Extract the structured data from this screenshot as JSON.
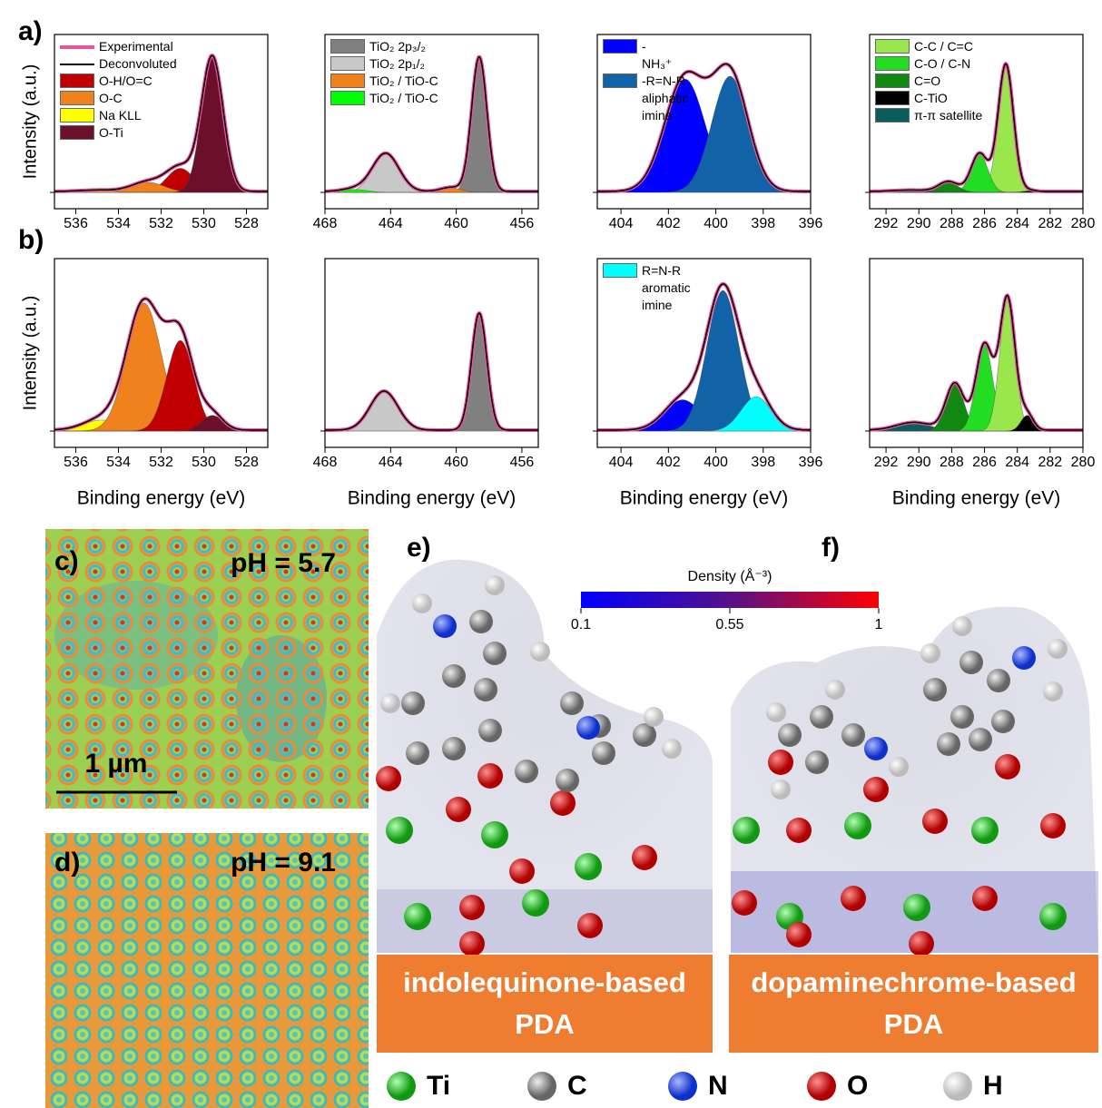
{
  "panel_labels": {
    "a": "a)",
    "b": "b)",
    "c": "c)",
    "d": "d)",
    "e": "e)",
    "f": "f)"
  },
  "xps": {
    "ylabel": "Intensity (a.u.)",
    "xlabel": "Binding energy (eV)",
    "experimental": {
      "name": "Experimental",
      "color": "#e8559f"
    },
    "fit": {
      "name": "Deconvoluted",
      "color": "#000000"
    },
    "charts": [
      {
        "xlim": [
          537,
          527
        ],
        "xticks": [
          536,
          534,
          532,
          530,
          528
        ],
        "legend": true,
        "series": [
          {
            "name": "O-H/O=C",
            "color": "#c00000",
            "center": 531.1,
            "height": 0.17,
            "width": 1.5
          },
          {
            "name": "O-C",
            "color": "#f0821e",
            "center": 532.6,
            "height": 0.07,
            "width": 1.8
          },
          {
            "name": "Na KLL",
            "color": "#ffff00",
            "center": 535,
            "height": 0.01,
            "width": 2
          },
          {
            "name": "O-Ti",
            "color": "#6b0f2a",
            "center": 529.6,
            "height": 0.95,
            "width": 1.2
          }
        ]
      },
      {
        "xlim": [
          468,
          455
        ],
        "xticks": [
          468,
          464,
          460,
          456
        ],
        "legend": false,
        "series": [
          {
            "name": "TiO₂ 2p₃/₂",
            "color": "#808080",
            "center": 458.6,
            "height": 0.95,
            "width": 1.1
          },
          {
            "name": "TiO₂ 2p₁/₂",
            "color": "#c8c8c8",
            "center": 464.3,
            "height": 0.27,
            "width": 1.9
          },
          {
            "name": "TiO₂ / TiO-C",
            "color": "#f0821e",
            "center": 460.3,
            "height": 0.03,
            "width": 1.5
          },
          {
            "name": "TiO₂ / TiO-C",
            "color": "#00ff00",
            "center": 466.2,
            "height": 0.02,
            "width": 1.8
          }
        ]
      },
      {
        "xlim": [
          405,
          396
        ],
        "xticks": [
          404,
          402,
          400,
          398,
          396
        ],
        "legend": false,
        "series": [
          {
            "name": "-NH₃⁺",
            "color": "#0000ff",
            "center": 401.3,
            "height": 0.8,
            "width": 2
          },
          {
            "name": "-R=N-R aliphatic imine",
            "color": "#1262a8",
            "center": 399.4,
            "height": 0.82,
            "width": 1.8
          }
        ]
      },
      {
        "xlim": [
          293,
          280
        ],
        "xticks": [
          292,
          290,
          288,
          286,
          284,
          282,
          280
        ],
        "legend": false,
        "series": [
          {
            "name": "C-C / C=C",
            "color": "#99e64d",
            "center": 284.7,
            "height": 0.9,
            "width": 1.1
          },
          {
            "name": "C-O / C-N",
            "color": "#22dd22",
            "center": 286.3,
            "height": 0.27,
            "width": 1.2
          },
          {
            "name": "C=O",
            "color": "#118811",
            "center": 288.2,
            "height": 0.07,
            "width": 1.4
          },
          {
            "name": "C-TiO",
            "color": "#000000",
            "center": 283.3,
            "height": 0.01,
            "width": 0.9
          },
          {
            "name": "π-π satellite",
            "color": "#0b5c5c",
            "center": 290.5,
            "height": 0.01,
            "width": 2.5
          }
        ]
      },
      {
        "xlim": [
          537,
          527
        ],
        "xticks": [
          536,
          534,
          532,
          530,
          528
        ],
        "legend": false,
        "series": [
          {
            "color": "#ffff00",
            "center": 534.8,
            "height": 0.07,
            "width": 2
          },
          {
            "color": "#f0821e",
            "center": 532.8,
            "height": 0.82,
            "width": 1.9
          },
          {
            "color": "#c00000",
            "center": 531.1,
            "height": 0.58,
            "width": 1.5
          },
          {
            "color": "#6b0f2a",
            "center": 529.6,
            "height": 0.1,
            "width": 1.2
          }
        ]
      },
      {
        "xlim": [
          468,
          455
        ],
        "xticks": [
          468,
          464,
          460,
          456
        ],
        "legend": false,
        "series": [
          {
            "color": "#c8c8c8",
            "center": 464.4,
            "height": 0.25,
            "width": 2
          },
          {
            "color": "#808080",
            "center": 458.6,
            "height": 0.75,
            "width": 1.1
          }
        ]
      },
      {
        "xlim": [
          405,
          396
        ],
        "xticks": [
          404,
          402,
          400,
          398,
          396
        ],
        "legend": false,
        "series": [
          {
            "color": "#0000ff",
            "center": 401.4,
            "height": 0.2,
            "width": 1.8
          },
          {
            "color": "#1262a8",
            "center": 399.7,
            "height": 0.9,
            "width": 1.6
          },
          {
            "name": "R=N-R aromatic imine",
            "color": "#00ffff",
            "center": 398.3,
            "height": 0.22,
            "width": 1.5
          }
        ]
      },
      {
        "xlim": [
          293,
          280
        ],
        "xticks": [
          292,
          290,
          288,
          286,
          284,
          282,
          280
        ],
        "legend": false,
        "series": [
          {
            "color": "#0b5c5c",
            "center": 290.3,
            "height": 0.05,
            "width": 2.5
          },
          {
            "color": "#118811",
            "center": 287.8,
            "height": 0.3,
            "width": 1.3
          },
          {
            "color": "#22dd22",
            "center": 286,
            "height": 0.55,
            "width": 1.2
          },
          {
            "color": "#99e64d",
            "center": 284.6,
            "height": 0.85,
            "width": 1.1
          },
          {
            "color": "#000000",
            "center": 283.4,
            "height": 0.1,
            "width": 0.9
          }
        ]
      }
    ]
  },
  "maps": [
    {
      "label": "pH = 5.7",
      "scale_bar": "1 µm"
    },
    {
      "label": "pH = 9.1"
    }
  ],
  "colorbar": {
    "title": "Density (Å⁻³)",
    "lim": [
      0.1,
      1
    ],
    "ticks": [
      0.1,
      0.55,
      1
    ]
  },
  "models": [
    "indolequinone-based PDA",
    "dopaminechrome-based PDA"
  ],
  "atoms": [
    {
      "symbol": "Ti",
      "color": "#22cc22"
    },
    {
      "symbol": "C",
      "color": "#8a8a8a"
    },
    {
      "symbol": "N",
      "color": "#2244ee"
    },
    {
      "symbol": "O",
      "color": "#e01010"
    },
    {
      "symbol": "H",
      "color": "#f4f4f4"
    }
  ]
}
